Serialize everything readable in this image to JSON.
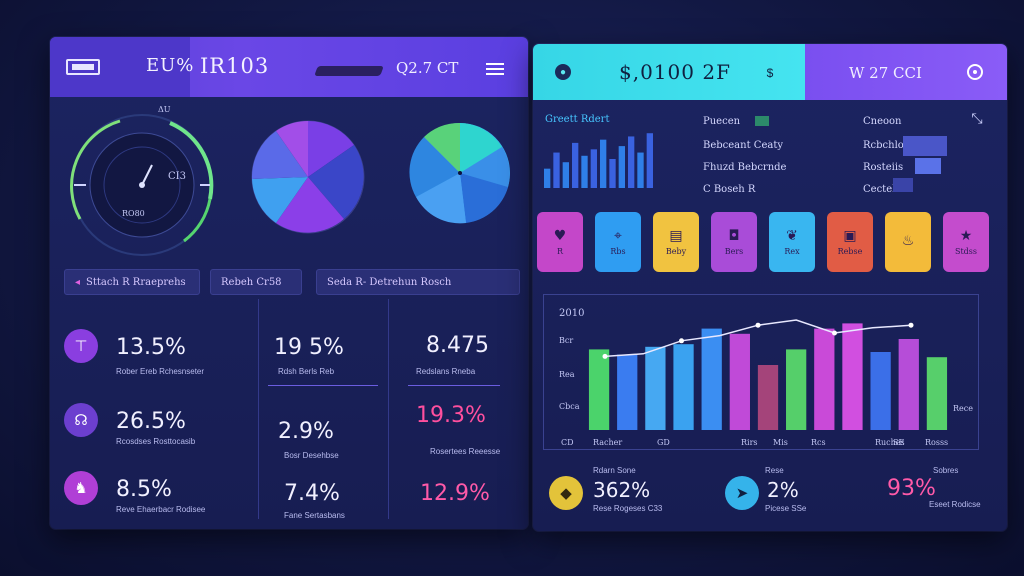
{
  "left": {
    "header": {
      "title_a": "EU%",
      "title_b": "IR103",
      "right_text": "Q2.7 CT",
      "menu_icon": "hamburger-icon"
    },
    "gauge": {
      "label_top": "ΔU",
      "readout": "CI3",
      "label_bottom": "RO80"
    },
    "chips": [
      "Sttach  R  Rraeprehs",
      "Rebeh Cr58",
      "Seda  R- Detrehun Rosch"
    ],
    "stats": [
      {
        "value": "13.5%",
        "caption": "Rober Ereb  Rchesnseter"
      },
      {
        "value": "19 5%",
        "caption": "Rdsh Berls Reb"
      },
      {
        "value": "8.475",
        "caption": "Redslans  Rneba"
      },
      {
        "value": "26.5%",
        "caption": "Rcosdses  Rosttocasib"
      },
      {
        "value": "2.9%",
        "caption": "Bosr   Desehbse"
      },
      {
        "value": "19.3%",
        "caption": "Rosertees   Reeesse"
      },
      {
        "value": "8.5%",
        "caption": "Reve  Ehaerbacr  Rodisee"
      },
      {
        "value": "7.4%",
        "caption": "Fane   Sertasbans"
      },
      {
        "value": "12.9%",
        "caption": ""
      }
    ]
  },
  "right": {
    "header": {
      "center_text": "$,0100 2F",
      "right_text": "W 27 CCI",
      "target_icon": "target-icon"
    },
    "mini_chart": {
      "title": "Greett  Rdert",
      "values": [
        12,
        22,
        16,
        28,
        20,
        24,
        30,
        18,
        26,
        32,
        22,
        34
      ]
    },
    "legend_col1": [
      "Puecen",
      "Bebceant Ceaty",
      "Fhuzd  Bebcrnde",
      "C  Boseh  R"
    ],
    "legend_col2": [
      "Cneoon",
      "Rcbchlon",
      "Rosteiis",
      "Cecteh13"
    ],
    "tiles": [
      {
        "label": "R",
        "icon": "heart-icon",
        "color": "#c447c9"
      },
      {
        "label": "Rbs",
        "icon": "pin-icon",
        "color": "#2f9df2"
      },
      {
        "label": "Beby",
        "icon": "chart-icon",
        "color": "#f1c340"
      },
      {
        "label": "Bers",
        "icon": "bag-icon",
        "color": "#a94cd8"
      },
      {
        "label": "Rex",
        "icon": "leaf-icon",
        "color": "#39b6f0"
      },
      {
        "label": "Rebse",
        "icon": "box-icon",
        "color": "#e15c45"
      },
      {
        "label": "",
        "icon": "cup-icon",
        "color": "#f3bb3a"
      },
      {
        "label": "Stdss",
        "icon": "star-icon",
        "color": "#c44ccd"
      }
    ],
    "chart_data": {
      "type": "bar",
      "title": "",
      "ylabel_top": "2010",
      "y_ticks": [
        "Bcr",
        "Rea",
        "Cbca",
        "Rece"
      ],
      "x_labels": [
        "CD",
        "Racher",
        "GD",
        "Rirs",
        "Mis",
        "Rcs",
        "Ruches",
        "SE",
        "Rosss"
      ],
      "values": [
        62,
        58,
        64,
        66,
        78,
        74,
        50,
        62,
        78,
        82,
        60,
        70,
        56
      ],
      "colors": [
        "#4bd36b",
        "#3a7cf0",
        "#46a8f2",
        "#3aa2f0",
        "#3b8ef2",
        "#c04ad8",
        "#a4447a",
        "#55cf6a",
        "#c94ad8",
        "#d14fe0",
        "#3b6fe8",
        "#b64dd8",
        "#57cf6b"
      ],
      "line_values": [
        52,
        54,
        64,
        68,
        76,
        80,
        70,
        74,
        76
      ]
    },
    "bottom_stats": [
      {
        "value": "362%",
        "caption": "Rese Rogeses C33",
        "top": "Rdarn  Sone"
      },
      {
        "value": "2%",
        "caption": "Picese  SSe",
        "top": "Rese"
      },
      {
        "value": "93%",
        "caption": "Eseet  Rodicse",
        "top": "Sobres"
      }
    ]
  }
}
